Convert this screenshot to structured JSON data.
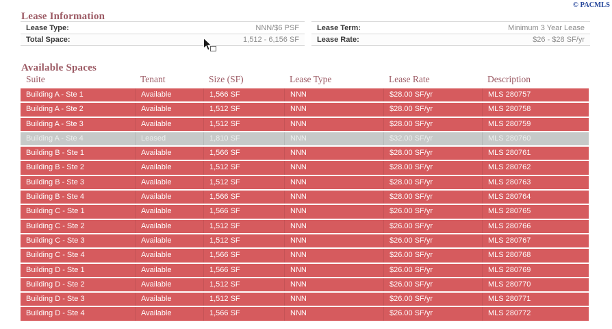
{
  "page": {
    "copyright_label": "© PACMLS",
    "colors": {
      "accent_rose": "#9c5a64",
      "row_available_red": "#d65b5e",
      "row_leased_gray": "#c6c9c8",
      "copyright_blue": "#26479b"
    }
  },
  "lease_information": {
    "title": "Lease Information",
    "left_fields": [
      {
        "label": "Lease Type:",
        "value": "NNN/$6 PSF"
      },
      {
        "label": "Total Space:",
        "value": "1,512 - 6,156 SF"
      }
    ],
    "right_fields": [
      {
        "label": "Lease Term:",
        "value": "Minimum 3 Year Lease"
      },
      {
        "label": "Lease Rate:",
        "value": "$26 - $28 SF/yr"
      }
    ]
  },
  "available_spaces": {
    "title": "Available Spaces",
    "columns": [
      "Suite",
      "Tenant",
      "Size (SF)",
      "Lease Type",
      "Lease Rate",
      "Description"
    ],
    "rows": [
      {
        "suite": "Building A - Ste 1",
        "tenant": "Available",
        "size": "1,566 SF",
        "lease_type": "NNN",
        "lease_rate": "$28.00 SF/yr",
        "description": "MLS 280757",
        "status": "available"
      },
      {
        "suite": "Building A - Ste 2",
        "tenant": "Available",
        "size": "1,512 SF",
        "lease_type": "NNN",
        "lease_rate": "$28.00 SF/yr",
        "description": "MLS 280758",
        "status": "available"
      },
      {
        "suite": "Building A - Ste 3",
        "tenant": "Available",
        "size": "1,512 SF",
        "lease_type": "NNN",
        "lease_rate": "$28.00 SF/yr",
        "description": "MLS 280759",
        "status": "available"
      },
      {
        "suite": "Building A - Ste 4",
        "tenant": "Leased",
        "size": "1,810 SF",
        "lease_type": "NNN",
        "lease_rate": "$32.00 SF/yr",
        "description": "MLS 280760",
        "status": "leased"
      },
      {
        "suite": "Building B - Ste 1",
        "tenant": "Available",
        "size": "1,566 SF",
        "lease_type": "NNN",
        "lease_rate": "$28.00 SF/yr",
        "description": "MLS 280761",
        "status": "available"
      },
      {
        "suite": "Building B - Ste 2",
        "tenant": "Available",
        "size": "1,512 SF",
        "lease_type": "NNN",
        "lease_rate": "$28.00 SF/yr",
        "description": "MLS 280762",
        "status": "available"
      },
      {
        "suite": "Building B - Ste 3",
        "tenant": "Available",
        "size": "1,512 SF",
        "lease_type": "NNN",
        "lease_rate": "$28.00 SF/yr",
        "description": "MLS 280763",
        "status": "available"
      },
      {
        "suite": "Building B - Ste 4",
        "tenant": "Available",
        "size": "1,566 SF",
        "lease_type": "NNN",
        "lease_rate": "$28.00 SF/yr",
        "description": "MLS 280764",
        "status": "available"
      },
      {
        "suite": "Building C - Ste 1",
        "tenant": "Available",
        "size": "1,566 SF",
        "lease_type": "NNN",
        "lease_rate": "$26.00 SF/yr",
        "description": "MLS 280765",
        "status": "available"
      },
      {
        "suite": "Building C - Ste 2",
        "tenant": "Available",
        "size": "1,512 SF",
        "lease_type": "NNN",
        "lease_rate": "$26.00 SF/yr",
        "description": "MLS 280766",
        "status": "available"
      },
      {
        "suite": "Building C - Ste 3",
        "tenant": "Available",
        "size": "1,512 SF",
        "lease_type": "NNN",
        "lease_rate": "$26.00 SF/yr",
        "description": "MLS 280767",
        "status": "available"
      },
      {
        "suite": "Building C - Ste 4",
        "tenant": "Available",
        "size": "1,566 SF",
        "lease_type": "NNN",
        "lease_rate": "$26.00 SF/yr",
        "description": "MLS 280768",
        "status": "available"
      },
      {
        "suite": "Building D - Ste 1",
        "tenant": "Available",
        "size": "1,566 SF",
        "lease_type": "NNN",
        "lease_rate": "$26.00 SF/yr",
        "description": "MLS 280769",
        "status": "available"
      },
      {
        "suite": "Building D - Ste 2",
        "tenant": "Available",
        "size": "1,512 SF",
        "lease_type": "NNN",
        "lease_rate": "$26.00 SF/yr",
        "description": "MLS 280770",
        "status": "available"
      },
      {
        "suite": "Building D - Ste 3",
        "tenant": "Available",
        "size": "1,512 SF",
        "lease_type": "NNN",
        "lease_rate": "$26.00 SF/yr",
        "description": "MLS 280771",
        "status": "available"
      },
      {
        "suite": "Building D - Ste 4",
        "tenant": "Available",
        "size": "1,566 SF",
        "lease_type": "NNN",
        "lease_rate": "$26.00 SF/yr",
        "description": "MLS 280772",
        "status": "available"
      }
    ]
  }
}
